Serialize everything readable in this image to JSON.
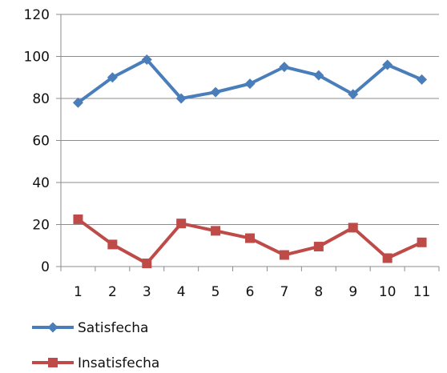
{
  "chart_data": {
    "type": "line",
    "title": "",
    "xlabel": "",
    "ylabel": "",
    "x": [
      "1",
      "2",
      "3",
      "4",
      "5",
      "6",
      "7",
      "8",
      "9",
      "10",
      "11"
    ],
    "ylim": [
      0,
      120
    ],
    "yticks": [
      "0",
      "20",
      "40",
      "60",
      "80",
      "100",
      "120"
    ],
    "grid": "horizontal",
    "legend_position": "bottom-left",
    "series": [
      {
        "name": "Satisfecha",
        "color": "#4a7ebb",
        "marker": "diamond",
        "values": [
          78,
          90,
          98.5,
          80,
          83,
          87,
          95,
          91,
          82,
          96,
          89
        ]
      },
      {
        "name": "Insatisfecha",
        "color": "#be4b48",
        "marker": "square",
        "values": [
          22.5,
          10.5,
          1.5,
          20.5,
          17,
          13.5,
          5.5,
          9.5,
          18.5,
          4,
          11.5
        ]
      }
    ]
  }
}
